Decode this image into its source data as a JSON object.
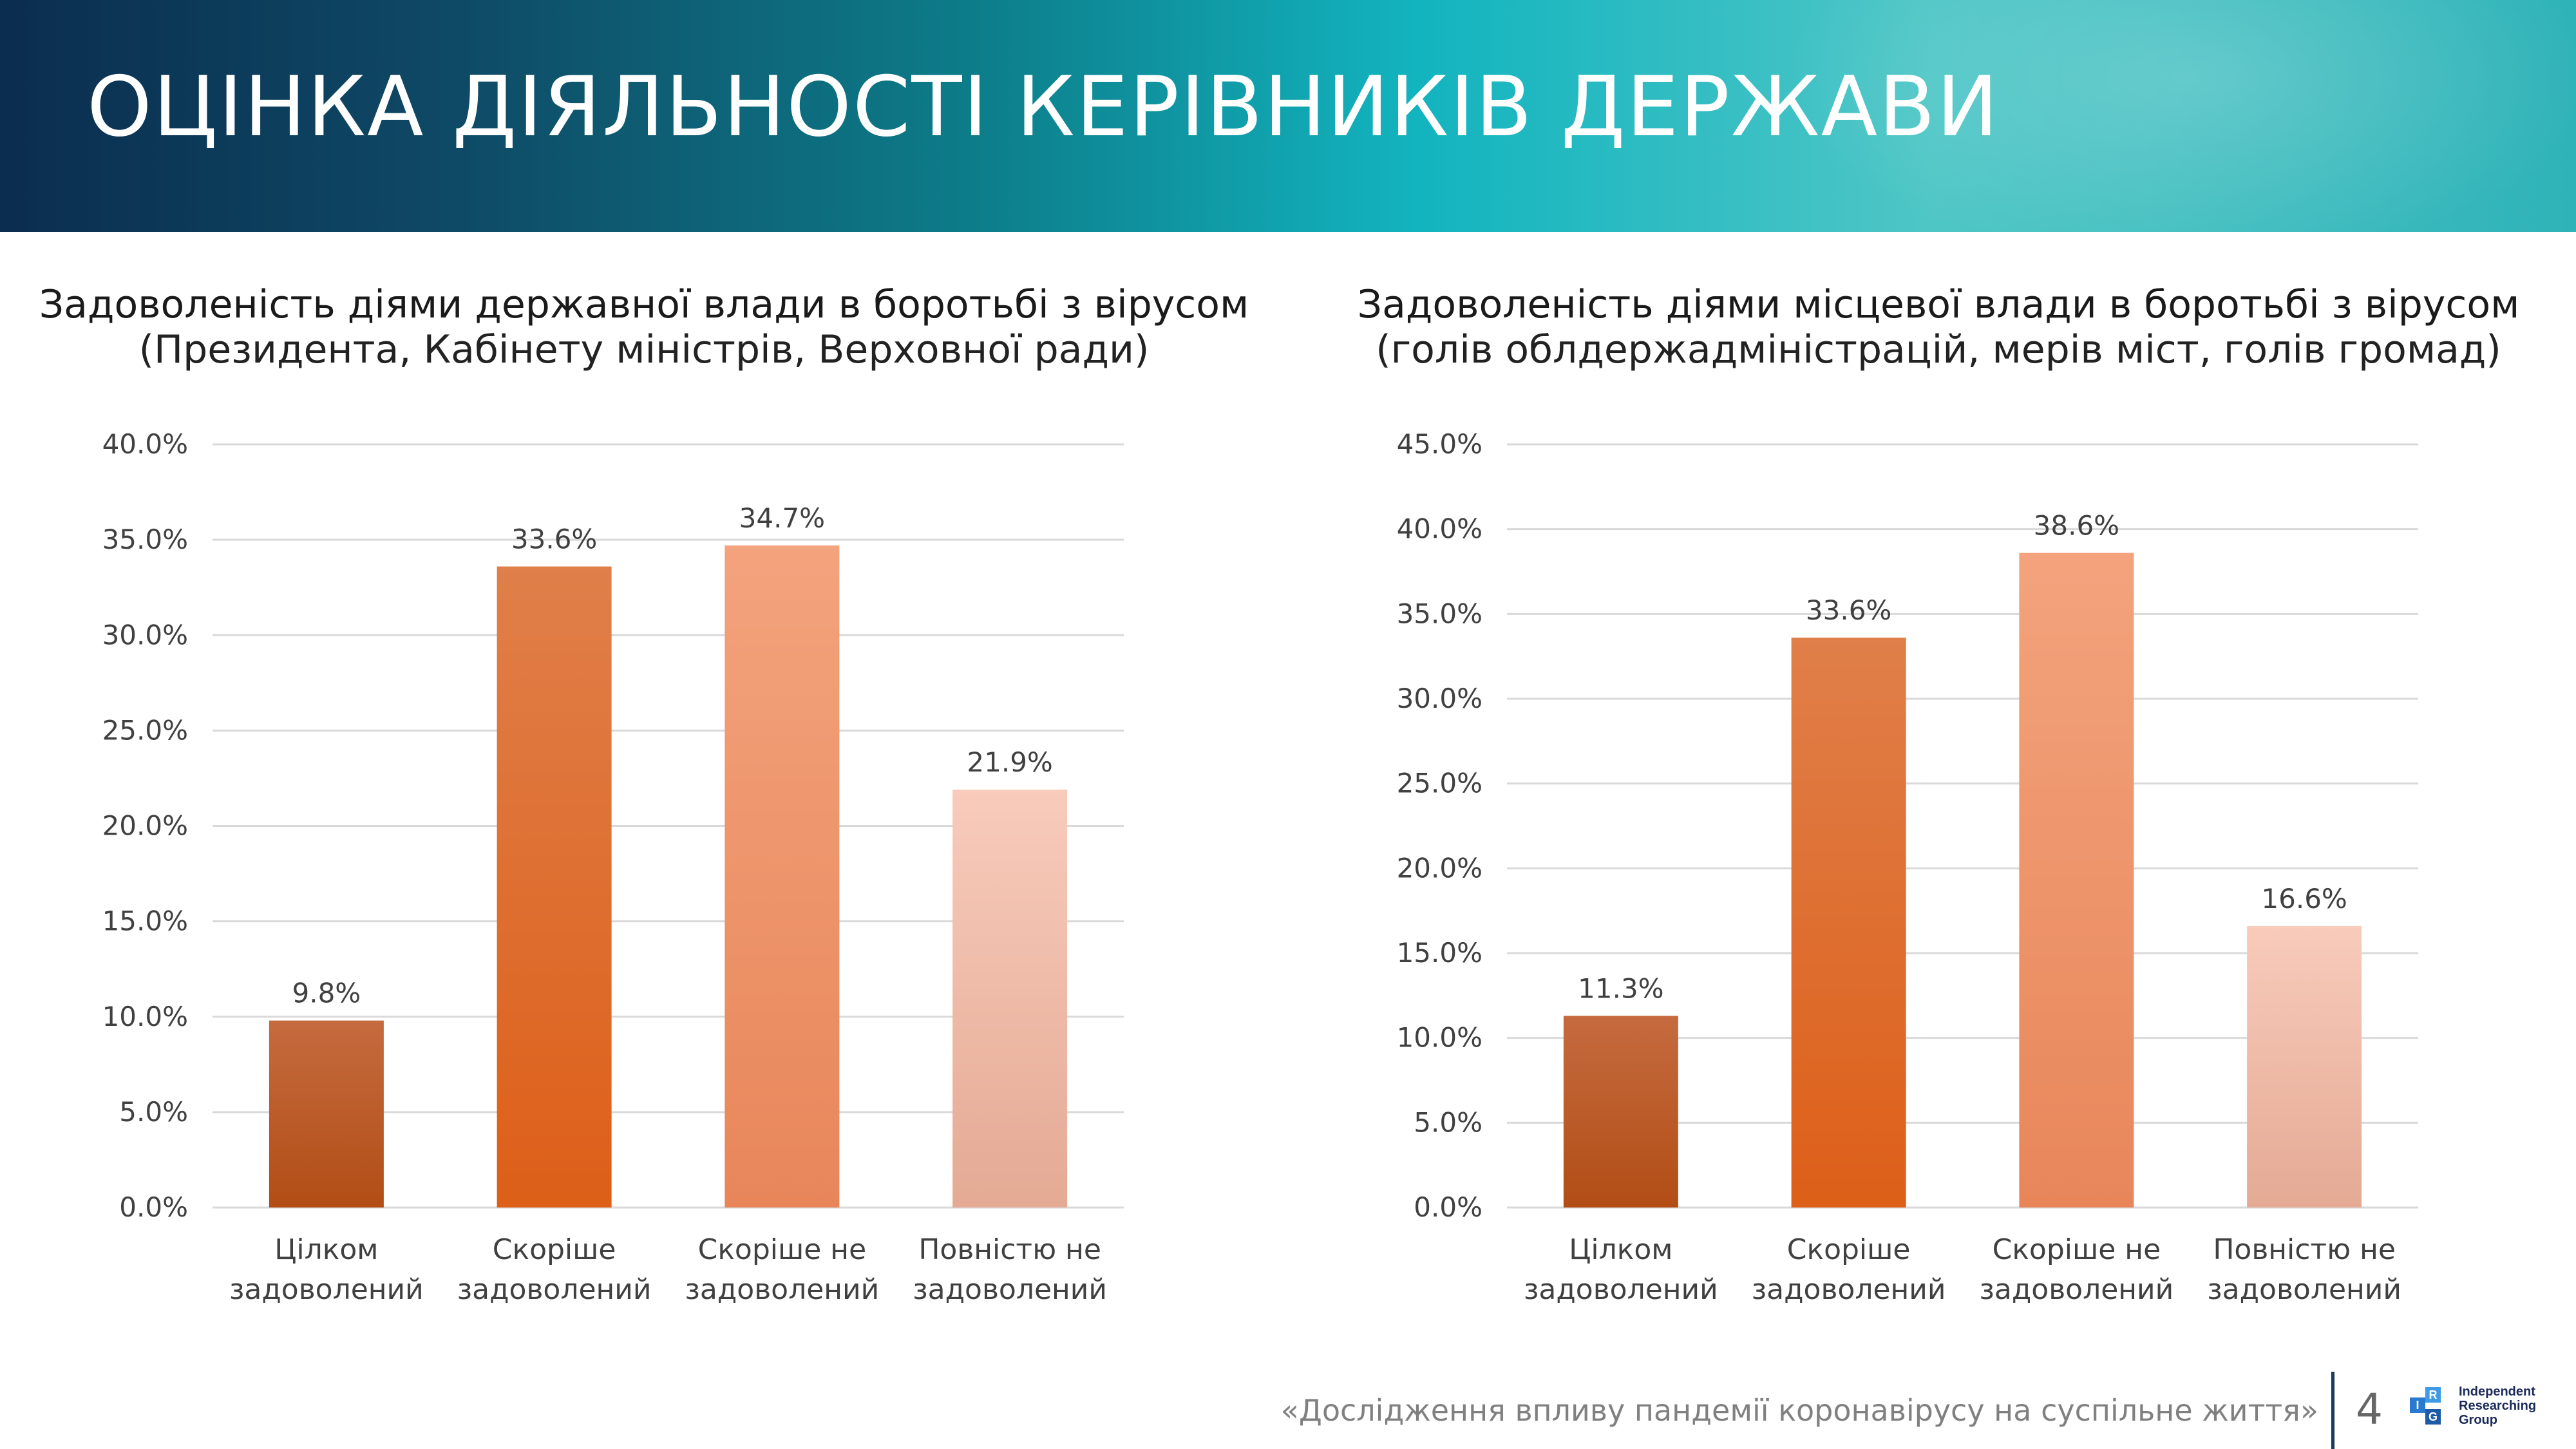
{
  "header": {
    "title": "ОЦІНКА ДІЯЛЬНОСТІ КЕРІВНИКІВ ДЕРЖАВИ"
  },
  "colors": {
    "bar_1": [
      "#c56b3f",
      "#b24d15"
    ],
    "bar_2": [
      "#e07f4a",
      "#dd5f18"
    ],
    "bar_3": [
      "#f3a37d",
      "#e8865a"
    ],
    "bar_4": [
      "#f8cbbb",
      "#e4aa94"
    ],
    "grid": "#d9d9d9",
    "tick_text": "#404040",
    "label_text": "#404040"
  },
  "chart_data": [
    {
      "type": "bar",
      "title": "Задоволеність діями державної влади в боротьбі з вірусом",
      "subtitle": "(Президента, Кабінету міністрів, Верховної ради)",
      "categories": [
        [
          "Цілком",
          "задоволений"
        ],
        [
          "Скоріше",
          "задоволений"
        ],
        [
          "Скоріше не",
          "задоволений"
        ],
        [
          "Повністю не",
          "задоволений"
        ]
      ],
      "values": [
        9.8,
        33.6,
        34.7,
        21.9
      ],
      "value_labels": [
        "9.8%",
        "33.6%",
        "34.7%",
        "21.9%"
      ],
      "ylim": [
        0,
        40
      ],
      "yticks": [
        "0.0%",
        "5.0%",
        "10.0%",
        "15.0%",
        "20.0%",
        "25.0%",
        "30.0%",
        "35.0%",
        "40.0%"
      ],
      "grid": true
    },
    {
      "type": "bar",
      "title": "Задоволеність діями місцевої влади в боротьбі з вірусом",
      "subtitle": "(голів облдержадміністрацій, мерів міст, голів громад)",
      "categories": [
        [
          "Цілком",
          "задоволений"
        ],
        [
          "Скоріше",
          "задоволений"
        ],
        [
          "Скоріше не",
          "задоволений"
        ],
        [
          "Повністю не",
          "задоволений"
        ]
      ],
      "values": [
        11.3,
        33.6,
        38.6,
        16.6
      ],
      "value_labels": [
        "11.3%",
        "33.6%",
        "38.6%",
        "16.6%"
      ],
      "ylim": [
        0,
        45
      ],
      "yticks": [
        "0.0%",
        "5.0%",
        "10.0%",
        "15.0%",
        "20.0%",
        "25.0%",
        "30.0%",
        "35.0%",
        "40.0%",
        "45.0%"
      ],
      "grid": true
    }
  ],
  "footer": {
    "text": "«Дослідження впливу пандемії коронавірусу на суспільне життя»",
    "page_number": "4",
    "logo_text": [
      "Independent",
      "Researching",
      "Group"
    ],
    "logo_letters": [
      "I",
      "R",
      "G"
    ]
  }
}
